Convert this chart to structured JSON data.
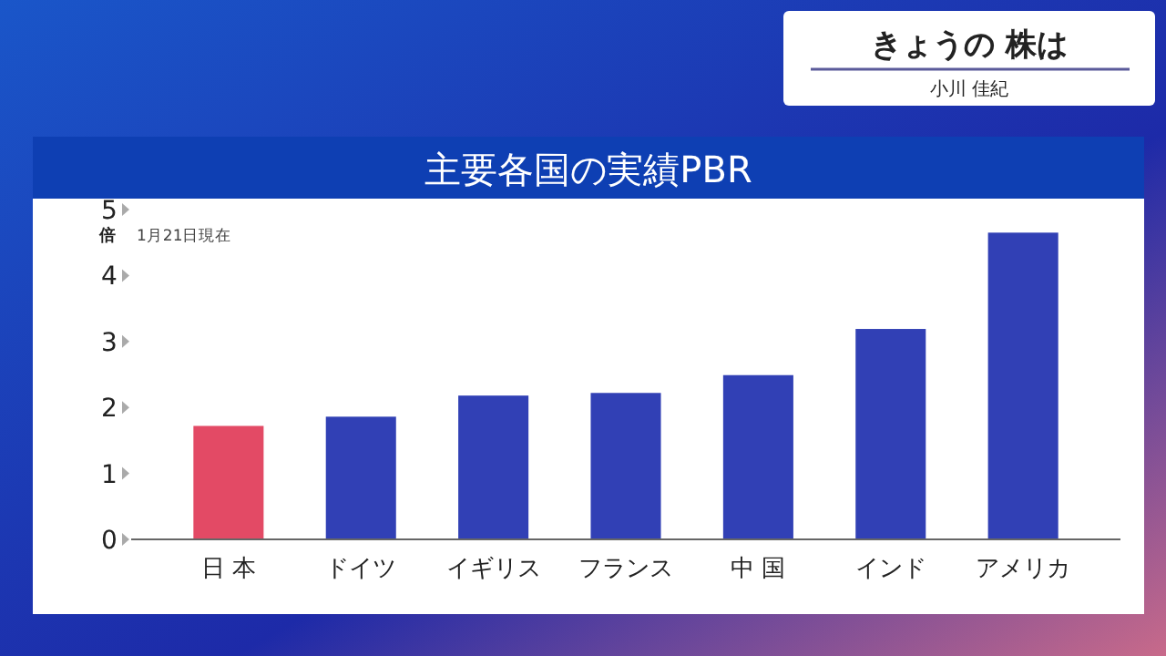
{
  "chart_data": {
    "type": "bar",
    "title": "主要各国の実績PBR",
    "ylabel": "倍",
    "categories": [
      "日 本",
      "ドイツ",
      "イギリス",
      "フランス",
      "中 国",
      "インド",
      "アメリカ"
    ],
    "values": [
      1.72,
      1.86,
      2.18,
      2.22,
      2.49,
      3.19,
      4.65
    ],
    "colors": [
      "#e34a65",
      "#3140b5",
      "#3140b5",
      "#3140b5",
      "#3140b5",
      "#3140b5",
      "#3140b5"
    ],
    "ylim": [
      0,
      5
    ],
    "yticks": [
      0,
      1,
      2,
      3,
      4,
      5
    ],
    "grid": false,
    "annotations": [
      "1月21日現在",
      "きょうの 株は",
      "小川 佳紀"
    ]
  }
}
